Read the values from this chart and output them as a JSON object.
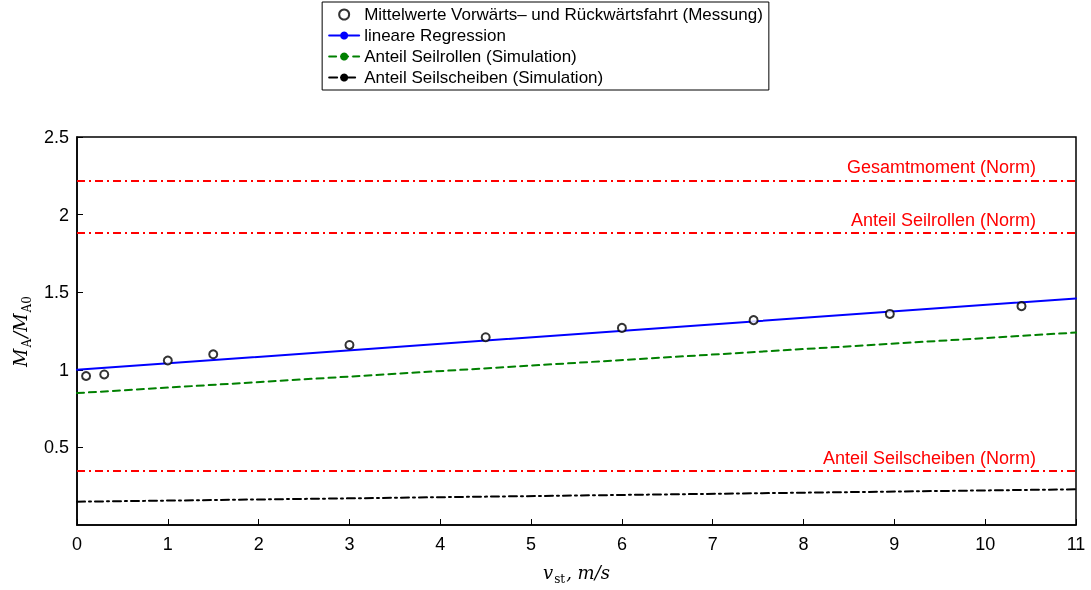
{
  "chart_data": {
    "type": "line",
    "xlabel": "v$_{st}$, m/s",
    "ylabel": "M$_{A}$/M$_{A0}$",
    "xlim": [
      0,
      11
    ],
    "xticks": [
      0,
      1,
      2,
      3,
      4,
      5,
      6,
      7,
      8,
      9,
      10,
      11
    ],
    "ylim": [
      0,
      2.5
    ],
    "yticks": [
      0.5,
      1,
      1.5,
      2,
      2.5
    ],
    "grid": false,
    "legend": "top",
    "marker": "none",
    "series": [
      {
        "name": "Mittelwerte Vorwärts– und Rückwärtsfahrt (Messung)",
        "type": "scatter",
        "marker": "circle",
        "color": "#000000",
        "x": [
          0.1,
          0.3,
          1,
          1.5,
          3,
          4.5,
          6,
          7.45,
          8.95,
          10.4
        ],
        "values": [
          0.96,
          0.97,
          1.06,
          1.1,
          1.16,
          1.21,
          1.27,
          1.32,
          1.36,
          1.41
        ]
      },
      {
        "name": "lineare Regression",
        "line_style": "solid",
        "color": "#0000ff",
        "x": [
          0,
          11
        ],
        "values": [
          1.0,
          1.46
        ]
      },
      {
        "name": "Anteil Seilrollen (Simulation)",
        "line_style": "dashed",
        "color": "#008000",
        "x": [
          0,
          11
        ],
        "values": [
          0.85,
          1.24
        ]
      },
      {
        "name": "Anteil Seilscheiben (Simulation)",
        "line_style": "dashdot",
        "color": "#000000",
        "x": [
          0,
          11
        ],
        "values": [
          0.15,
          0.23
        ]
      }
    ],
    "ref_lines": [
      {
        "axis": "y",
        "value": 2.22,
        "label": "Gesamtmoment (Norm)",
        "color": "#ff0000",
        "line_style": "dashdot"
      },
      {
        "axis": "y",
        "value": 1.88,
        "label": "Anteil Seilrollen (Norm)",
        "color": "#ff0000",
        "line_style": "dashdot"
      },
      {
        "axis": "y",
        "value": 0.35,
        "label": "Anteil Seilscheiben (Norm)",
        "color": "#ff0000",
        "line_style": "dashdot"
      }
    ]
  }
}
